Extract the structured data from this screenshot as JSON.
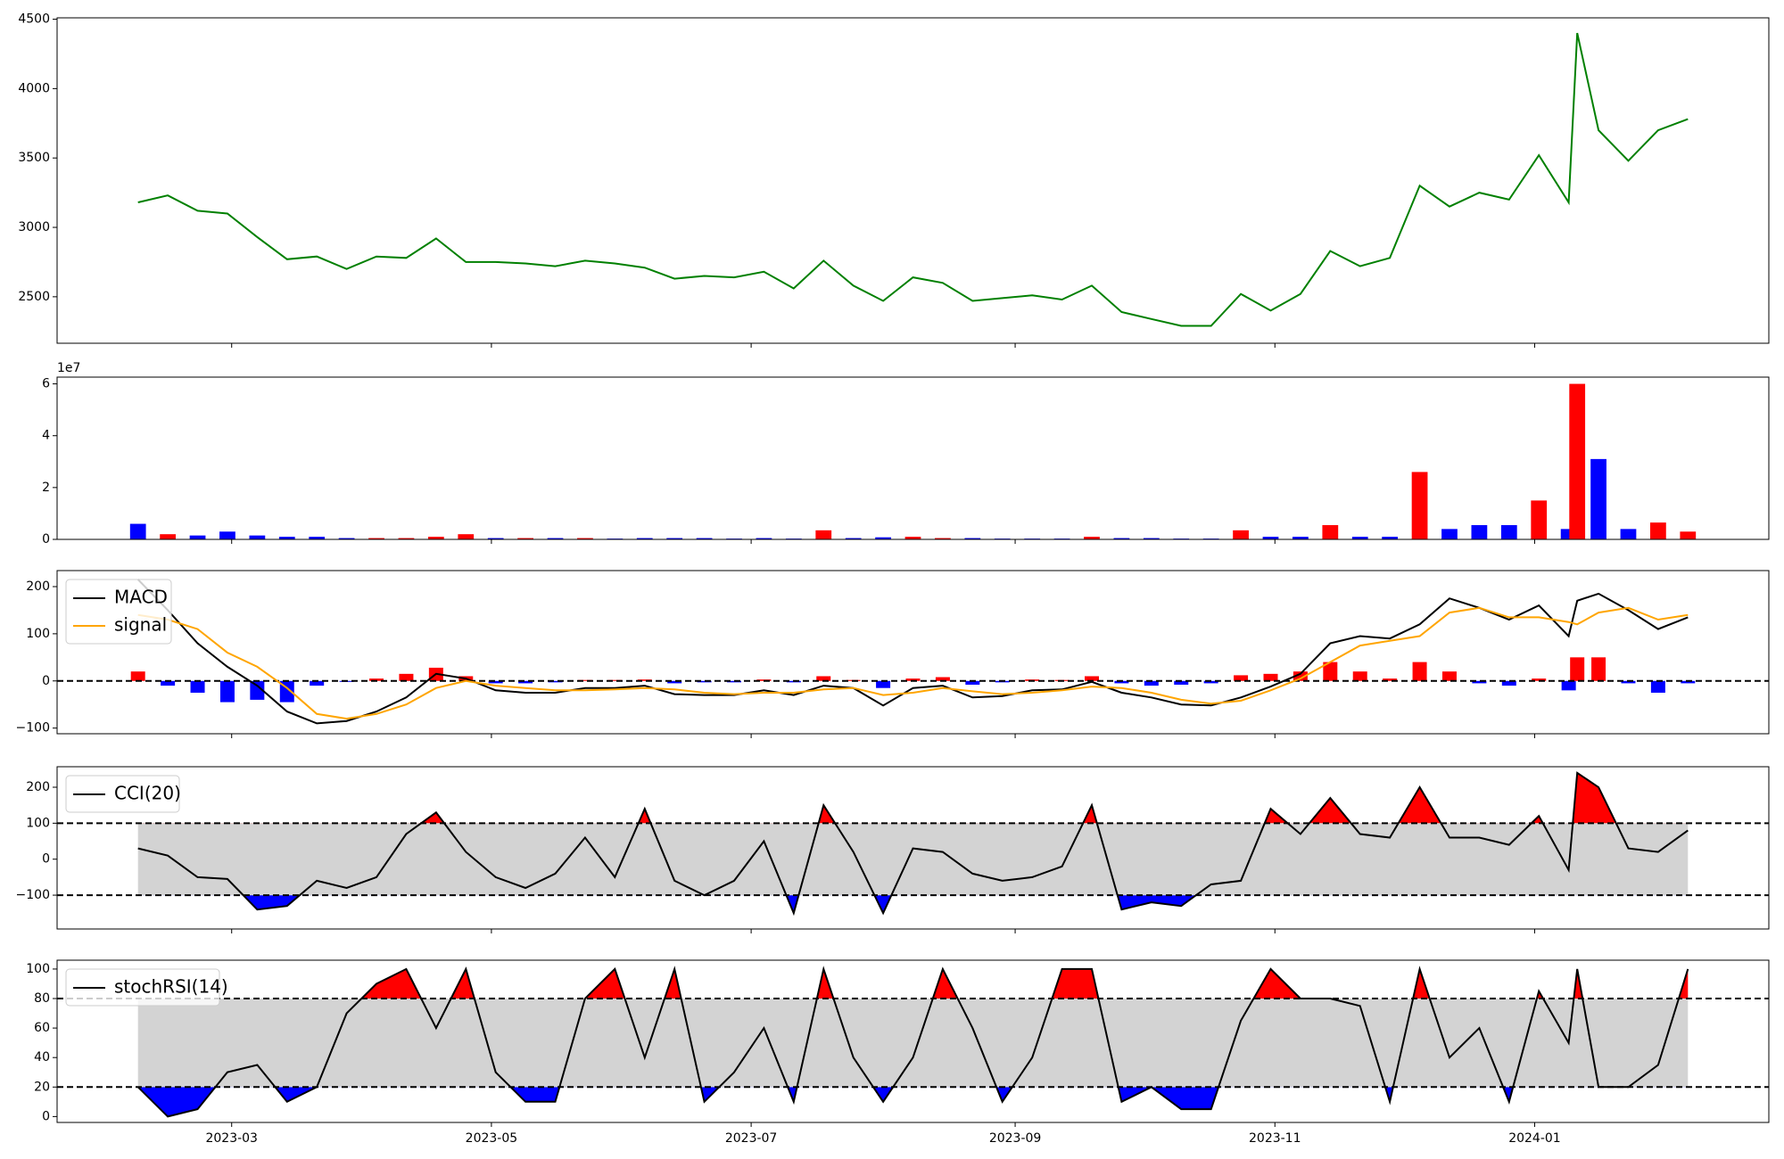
{
  "chart_data": {
    "x": [
      "2023-02-07",
      "2023-02-14",
      "2023-02-21",
      "2023-02-28",
      "2023-03-07",
      "2023-03-14",
      "2023-03-21",
      "2023-03-28",
      "2023-04-04",
      "2023-04-11",
      "2023-04-18",
      "2023-04-25",
      "2023-05-02",
      "2023-05-09",
      "2023-05-16",
      "2023-05-23",
      "2023-05-30",
      "2023-06-06",
      "2023-06-13",
      "2023-06-20",
      "2023-06-27",
      "2023-07-04",
      "2023-07-11",
      "2023-07-18",
      "2023-07-25",
      "2023-08-01",
      "2023-08-08",
      "2023-08-15",
      "2023-08-22",
      "2023-08-29",
      "2023-09-05",
      "2023-09-12",
      "2023-09-19",
      "2023-09-26",
      "2023-10-03",
      "2023-10-10",
      "2023-10-17",
      "2023-10-24",
      "2023-10-31",
      "2023-11-07",
      "2023-11-14",
      "2023-11-21",
      "2023-11-28",
      "2023-12-05",
      "2023-12-12",
      "2023-12-19",
      "2023-12-26",
      "2024-01-02",
      "2024-01-09",
      "2024-01-11",
      "2024-01-16",
      "2024-01-23",
      "2024-01-30",
      "2024-02-06"
    ],
    "xlim": [
      "2023-01-19",
      "2024-02-25"
    ],
    "xticks": [
      {
        "value": "2023-03-01",
        "label": "2023-03"
      },
      {
        "value": "2023-05-01",
        "label": "2023-05"
      },
      {
        "value": "2023-07-01",
        "label": "2023-07"
      },
      {
        "value": "2023-09-01",
        "label": "2023-09"
      },
      {
        "value": "2023-11-01",
        "label": "2023-11"
      },
      {
        "value": "2024-01-01",
        "label": "2024-01"
      }
    ],
    "panels": [
      {
        "type": "line",
        "ylim": [
          2165,
          4510
        ],
        "yticks": [
          2500,
          3000,
          3500,
          4000,
          4500
        ],
        "series": [
          {
            "color": "green",
            "values": [
              3180,
              3230,
              3120,
              3100,
              2930,
              2770,
              2790,
              2700,
              2790,
              2780,
              2920,
              2750,
              2750,
              2740,
              2720,
              2760,
              2740,
              2710,
              2630,
              2650,
              2640,
              2680,
              2560,
              2760,
              2580,
              2470,
              2640,
              2600,
              2470,
              2490,
              2510,
              2480,
              2580,
              2390,
              2340,
              2290,
              2290,
              2520,
              2400,
              2520,
              2830,
              2720,
              2780,
              3300,
              3150,
              3250,
              3200,
              3520,
              3180,
              4400,
              3700,
              3480,
              3700,
              3780
            ]
          }
        ]
      },
      {
        "type": "bar",
        "ylim": [
          0,
          6.26
        ],
        "yticks": [
          0,
          2,
          4,
          6
        ],
        "offset_label": "1e7",
        "values": [
          0.6,
          0.2,
          0.15,
          0.3,
          0.15,
          0.1,
          0.1,
          0.05,
          0.05,
          0.05,
          0.1,
          0.2,
          0.05,
          0.05,
          0.05,
          0.05,
          0.03,
          0.05,
          0.05,
          0.05,
          0.03,
          0.05,
          0.03,
          0.35,
          0.05,
          0.08,
          0.1,
          0.05,
          0.05,
          0.03,
          0.03,
          0.03,
          0.1,
          0.05,
          0.05,
          0.03,
          0.03,
          0.35,
          0.1,
          0.1,
          0.55,
          0.1,
          0.1,
          2.6,
          0.4,
          0.55,
          0.55,
          1.5,
          0.4,
          6.0,
          3.1,
          0.4,
          0.65,
          0.3
        ],
        "colors": [
          "blue",
          "red",
          "blue",
          "blue",
          "blue",
          "blue",
          "blue",
          "blue",
          "red",
          "red",
          "red",
          "red",
          "blue",
          "red",
          "blue",
          "red",
          "blue",
          "blue",
          "blue",
          "blue",
          "blue",
          "blue",
          "blue",
          "red",
          "blue",
          "blue",
          "red",
          "red",
          "blue",
          "blue",
          "blue",
          "blue",
          "red",
          "blue",
          "blue",
          "blue",
          "blue",
          "red",
          "blue",
          "blue",
          "red",
          "blue",
          "blue",
          "red",
          "blue",
          "blue",
          "blue",
          "red",
          "blue",
          "red",
          "blue",
          "blue",
          "red",
          "red"
        ]
      },
      {
        "type": "macd",
        "ylim": [
          -112,
          234
        ],
        "yticks": [
          {
            "value": -100,
            "label": "−100"
          },
          0,
          100,
          200
        ],
        "hlines": [
          0
        ],
        "legend": "upper left",
        "series": [
          {
            "name": "MACD",
            "color": "black",
            "values": [
              215,
              150,
              80,
              30,
              -10,
              -65,
              -90,
              -85,
              -65,
              -35,
              15,
              5,
              -20,
              -25,
              -25,
              -15,
              -15,
              -10,
              -28,
              -30,
              -30,
              -20,
              -30,
              -10,
              -15,
              -52,
              -15,
              -10,
              -35,
              -32,
              -20,
              -18,
              -2,
              -25,
              -35,
              -50,
              -52,
              -35,
              -12,
              15,
              80,
              95,
              90,
              120,
              175,
              155,
              130,
              160,
              95,
              170,
              185,
              150,
              110,
              135
            ]
          },
          {
            "name": "signal",
            "color": "orange",
            "values": [
              140,
              130,
              110,
              60,
              30,
              -15,
              -70,
              -80,
              -70,
              -50,
              -15,
              0,
              -10,
              -15,
              -20,
              -20,
              -18,
              -15,
              -18,
              -25,
              -28,
              -25,
              -25,
              -18,
              -15,
              -30,
              -25,
              -15,
              -22,
              -28,
              -25,
              -20,
              -12,
              -15,
              -25,
              -40,
              -48,
              -42,
              -20,
              5,
              40,
              75,
              85,
              95,
              145,
              155,
              135,
              135,
              125,
              120,
              145,
              155,
              130,
              140
            ]
          }
        ],
        "histogram": {
          "up_color": "red",
          "down_color": "blue",
          "values": [
            20,
            -10,
            -25,
            -45,
            -40,
            -45,
            -10,
            -2,
            5,
            15,
            28,
            10,
            -5,
            -5,
            -3,
            2,
            2,
            3,
            -5,
            -3,
            -3,
            3,
            -3,
            10,
            2,
            -15,
            5,
            8,
            -8,
            -3,
            3,
            2,
            10,
            -5,
            -10,
            -8,
            -5,
            12,
            15,
            20,
            40,
            20,
            5,
            40,
            20,
            -5,
            -10,
            5,
            -20,
            50,
            50,
            -5,
            -25,
            -5
          ]
        }
      },
      {
        "type": "band",
        "ylim": [
          -194,
          257
        ],
        "yticks": [
          {
            "value": -100,
            "label": "−100"
          },
          0,
          100,
          200
        ],
        "band": [
          -100,
          100
        ],
        "band_color": "lightgray",
        "upper_color": "red",
        "lower_color": "blue",
        "legend": "upper left",
        "series": [
          {
            "name": "CCI(20)",
            "color": "black",
            "values": [
              30,
              10,
              -50,
              -55,
              -140,
              -130,
              -60,
              -80,
              -50,
              70,
              130,
              20,
              -50,
              -80,
              -40,
              60,
              -50,
              140,
              -60,
              -100,
              -60,
              50,
              -150,
              150,
              20,
              -150,
              30,
              20,
              -40,
              -60,
              -50,
              -20,
              150,
              -140,
              -120,
              -130,
              -70,
              -60,
              140,
              70,
              170,
              70,
              60,
              200,
              60,
              60,
              40,
              120,
              -30,
              240,
              200,
              30,
              20,
              80
            ]
          }
        ]
      },
      {
        "type": "band",
        "ylim": [
          -4,
          106
        ],
        "yticks": [
          0,
          20,
          40,
          60,
          80,
          100
        ],
        "band": [
          20,
          80
        ],
        "band_color": "lightgray",
        "upper_color": "red",
        "lower_color": "blue",
        "legend": "upper left",
        "series": [
          {
            "name": "stochRSI(14)",
            "color": "black",
            "values": [
              20,
              0,
              5,
              30,
              35,
              10,
              20,
              70,
              90,
              100,
              60,
              100,
              30,
              10,
              10,
              80,
              100,
              40,
              100,
              10,
              30,
              60,
              10,
              100,
              40,
              10,
              40,
              100,
              60,
              10,
              40,
              100,
              100,
              10,
              20,
              5,
              5,
              65,
              100,
              80,
              80,
              75,
              10,
              100,
              40,
              60,
              10,
              85,
              50,
              100,
              20,
              20,
              35,
              100
            ]
          }
        ]
      }
    ]
  }
}
